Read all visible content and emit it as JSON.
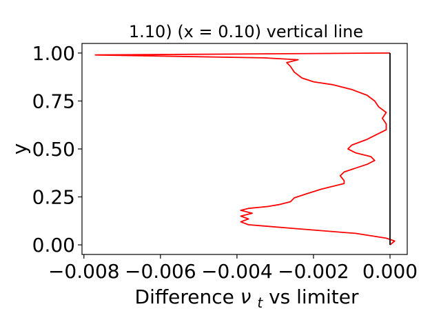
{
  "chart_data": {
    "type": "line",
    "title": "1.10) (x = 0.10) vertical line",
    "xlabel_prefix": "Difference ",
    "xlabel_symbol": "ν",
    "xlabel_subscript": "t",
    "xlabel_suffix": " vs limiter",
    "ylabel": "y",
    "xlim": [
      -0.00805,
      0.00045
    ],
    "ylim": [
      -0.05,
      1.05
    ],
    "xticks": [
      -0.008,
      -0.006,
      -0.004,
      -0.002,
      0.0
    ],
    "xtick_labels": [
      "−0.008",
      "−0.006",
      "−0.004",
      "−0.002",
      "0.000"
    ],
    "yticks": [
      0.0,
      0.25,
      0.5,
      0.75,
      1.0
    ],
    "ytick_labels": [
      "0.00",
      "0.25",
      "0.50",
      "0.75",
      "1.00"
    ],
    "grid": false,
    "series": [
      {
        "color": "#ff0000",
        "points": [
          [
            0.0,
            0.0
          ],
          [
            0.00012,
            0.02
          ],
          [
            -0.0001,
            0.035
          ],
          [
            -0.0009,
            0.06
          ],
          [
            -0.0025,
            0.085
          ],
          [
            -0.0037,
            0.105
          ],
          [
            -0.0039,
            0.12
          ],
          [
            -0.0037,
            0.135
          ],
          [
            -0.0039,
            0.15
          ],
          [
            -0.0036,
            0.165
          ],
          [
            -0.0039,
            0.18
          ],
          [
            -0.0037,
            0.19
          ],
          [
            -0.0032,
            0.2
          ],
          [
            -0.0029,
            0.21
          ],
          [
            -0.0026,
            0.225
          ],
          [
            -0.0025,
            0.245
          ],
          [
            -0.0022,
            0.265
          ],
          [
            -0.0018,
            0.29
          ],
          [
            -0.0014,
            0.31
          ],
          [
            -0.0012,
            0.32
          ],
          [
            -0.0012,
            0.335
          ],
          [
            -0.0013,
            0.36
          ],
          [
            -0.0012,
            0.38
          ],
          [
            -0.0009,
            0.4
          ],
          [
            -0.0006,
            0.42
          ],
          [
            -0.0004,
            0.44
          ],
          [
            -0.0005,
            0.46
          ],
          [
            -0.0009,
            0.48
          ],
          [
            -0.0011,
            0.5
          ],
          [
            -0.001,
            0.52
          ],
          [
            -0.0006,
            0.55
          ],
          [
            -0.0003,
            0.58
          ],
          [
            -0.0001,
            0.6
          ],
          [
            -0.0001,
            0.63
          ],
          [
            -0.0002,
            0.66
          ],
          [
            -0.0001,
            0.69
          ],
          [
            -0.0003,
            0.72
          ],
          [
            -0.0004,
            0.75
          ],
          [
            -0.0006,
            0.78
          ],
          [
            -0.001,
            0.81
          ],
          [
            -0.0015,
            0.835
          ],
          [
            -0.002,
            0.85
          ],
          [
            -0.0023,
            0.87
          ],
          [
            -0.0025,
            0.9
          ],
          [
            -0.0026,
            0.93
          ],
          [
            -0.0027,
            0.95
          ],
          [
            -0.0024,
            0.965
          ],
          [
            -0.0033,
            0.975
          ],
          [
            -0.0077,
            0.99
          ],
          [
            0.0,
            1.0
          ]
        ]
      },
      {
        "color": "#000000",
        "points": [
          [
            0.0,
            0.0
          ],
          [
            0.0,
            1.0
          ]
        ]
      }
    ]
  }
}
